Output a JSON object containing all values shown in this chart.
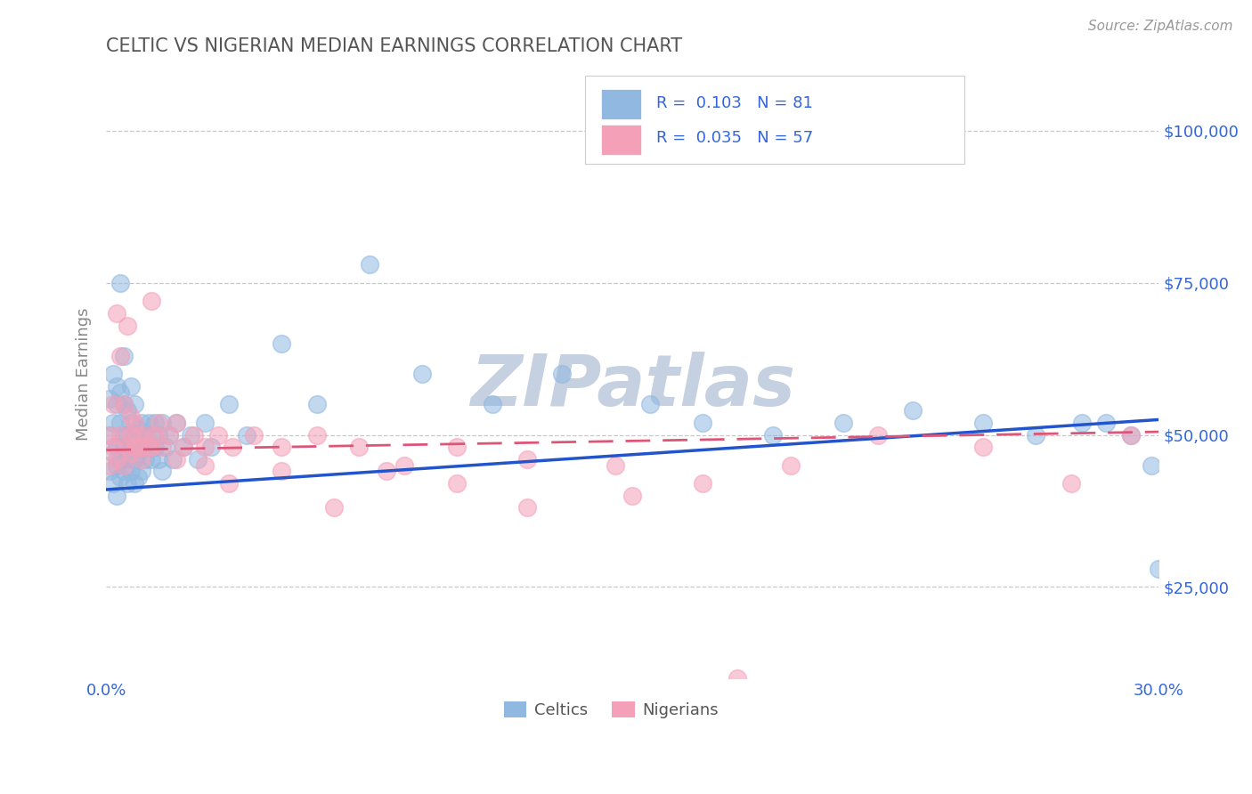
{
  "title": "CELTIC VS NIGERIAN MEDIAN EARNINGS CORRELATION CHART",
  "source": "Source: ZipAtlas.com",
  "ylabel": "Median Earnings",
  "xlim": [
    0.0,
    0.3
  ],
  "ylim": [
    10000,
    110000
  ],
  "yticks": [
    25000,
    50000,
    75000,
    100000
  ],
  "ytick_labels": [
    "$25,000",
    "$50,000",
    "$75,000",
    "$100,000"
  ],
  "xticks": [
    0.0,
    0.05,
    0.1,
    0.15,
    0.2,
    0.25,
    0.3
  ],
  "xtick_labels": [
    "0.0%",
    "",
    "",
    "",
    "",
    "",
    "30.0%"
  ],
  "grid_color": "#c8c8c8",
  "background_color": "#ffffff",
  "title_color": "#555555",
  "axis_label_color": "#3366dd",
  "watermark": "ZIPatlas",
  "watermark_color": "#c5d0e0",
  "celtic_color": "#90b8e0",
  "nigerian_color": "#f4a0b8",
  "celtic_line_color": "#2255cc",
  "nigerian_line_color": "#dd5577",
  "legend_label1": "Celtics",
  "legend_label2": "Nigerians",
  "celtic_scatter_x": [
    0.001,
    0.001,
    0.001,
    0.002,
    0.002,
    0.002,
    0.002,
    0.003,
    0.003,
    0.003,
    0.003,
    0.003,
    0.004,
    0.004,
    0.004,
    0.004,
    0.005,
    0.005,
    0.005,
    0.005,
    0.005,
    0.006,
    0.006,
    0.006,
    0.006,
    0.007,
    0.007,
    0.007,
    0.007,
    0.008,
    0.008,
    0.008,
    0.008,
    0.009,
    0.009,
    0.009,
    0.01,
    0.01,
    0.01,
    0.011,
    0.011,
    0.012,
    0.012,
    0.013,
    0.013,
    0.014,
    0.014,
    0.015,
    0.015,
    0.016,
    0.016,
    0.017,
    0.018,
    0.019,
    0.02,
    0.022,
    0.024,
    0.026,
    0.028,
    0.03,
    0.035,
    0.04,
    0.05,
    0.06,
    0.075,
    0.09,
    0.11,
    0.13,
    0.155,
    0.17,
    0.19,
    0.21,
    0.23,
    0.25,
    0.265,
    0.278,
    0.285,
    0.292,
    0.298,
    0.3,
    0.004
  ],
  "celtic_scatter_y": [
    50000,
    56000,
    44000,
    52000,
    47000,
    60000,
    42000,
    55000,
    48000,
    40000,
    58000,
    45000,
    52000,
    46000,
    57000,
    43000,
    50000,
    55000,
    44000,
    48000,
    63000,
    50000,
    46000,
    54000,
    42000,
    52000,
    48000,
    44000,
    58000,
    50000,
    46000,
    55000,
    42000,
    51000,
    47000,
    43000,
    52000,
    48000,
    44000,
    50000,
    46000,
    52000,
    48000,
    50000,
    46000,
    52000,
    48000,
    50000,
    46000,
    52000,
    44000,
    48000,
    50000,
    46000,
    52000,
    48000,
    50000,
    46000,
    52000,
    48000,
    55000,
    50000,
    65000,
    55000,
    78000,
    60000,
    55000,
    60000,
    55000,
    52000,
    50000,
    52000,
    54000,
    52000,
    50000,
    52000,
    52000,
    50000,
    45000,
    28000,
    75000
  ],
  "nigerian_scatter_x": [
    0.001,
    0.001,
    0.002,
    0.002,
    0.003,
    0.003,
    0.004,
    0.004,
    0.005,
    0.005,
    0.006,
    0.006,
    0.007,
    0.007,
    0.008,
    0.008,
    0.009,
    0.01,
    0.011,
    0.012,
    0.013,
    0.014,
    0.015,
    0.016,
    0.018,
    0.02,
    0.022,
    0.025,
    0.028,
    0.032,
    0.036,
    0.042,
    0.05,
    0.06,
    0.072,
    0.085,
    0.1,
    0.12,
    0.145,
    0.17,
    0.195,
    0.22,
    0.25,
    0.275,
    0.292,
    0.007,
    0.01,
    0.013,
    0.02,
    0.028,
    0.035,
    0.05,
    0.065,
    0.08,
    0.1,
    0.12,
    0.15
  ],
  "nigerian_scatter_y": [
    50000,
    45000,
    55000,
    48000,
    70000,
    46000,
    63000,
    50000,
    55000,
    45000,
    68000,
    48000,
    53000,
    47000,
    52000,
    48000,
    50000,
    48000,
    50000,
    48000,
    72000,
    50000,
    52000,
    48000,
    50000,
    52000,
    48000,
    50000,
    48000,
    50000,
    48000,
    50000,
    48000,
    50000,
    48000,
    45000,
    48000,
    46000,
    45000,
    42000,
    45000,
    50000,
    48000,
    42000,
    50000,
    50000,
    46000,
    48000,
    46000,
    45000,
    42000,
    44000,
    38000,
    44000,
    42000,
    38000,
    40000
  ],
  "celtic_trend_x": [
    0.0,
    0.3
  ],
  "celtic_trend_y": [
    41000,
    52500
  ],
  "nigerian_trend_x": [
    0.0,
    0.3
  ],
  "nigerian_trend_y": [
    47500,
    50500
  ],
  "nigerian_outlier_x": [
    0.18
  ],
  "nigerian_outlier_y": [
    10000
  ]
}
